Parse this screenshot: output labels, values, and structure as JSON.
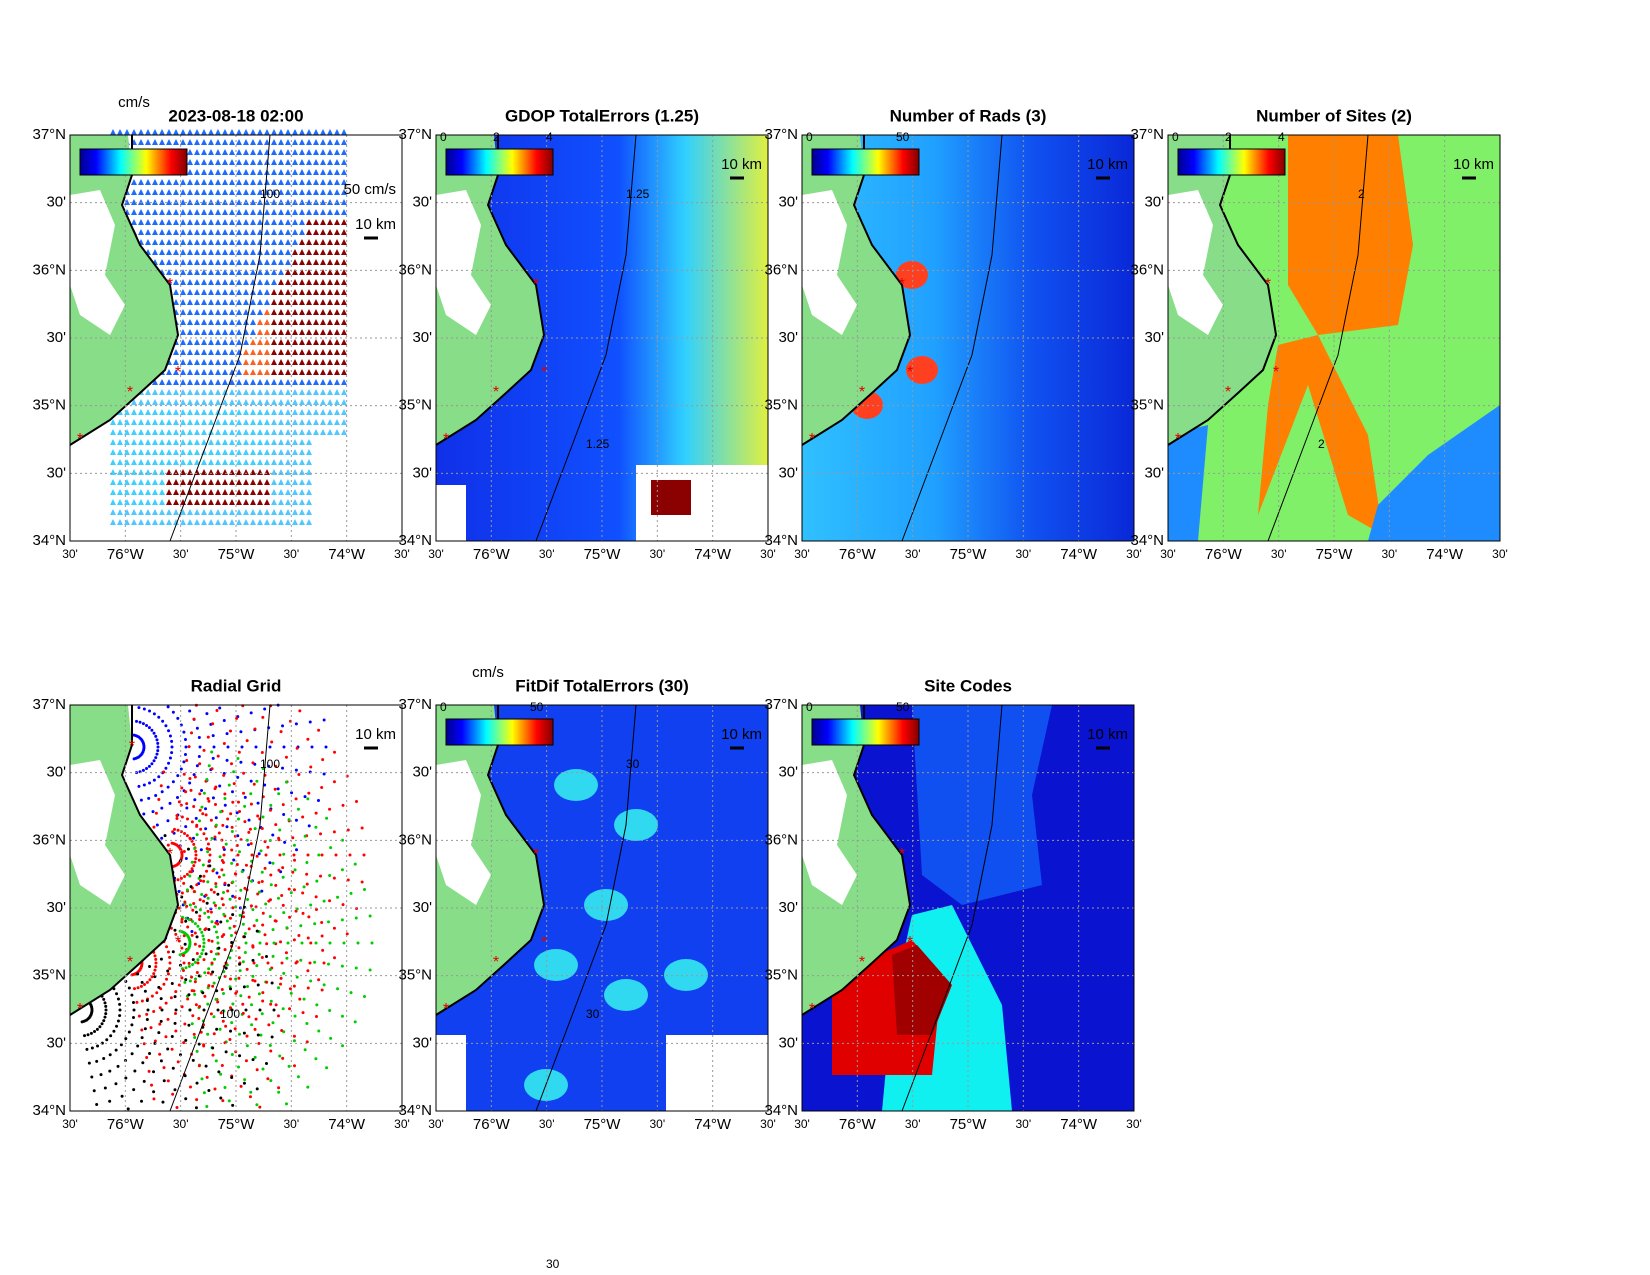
{
  "panels": [
    {
      "title": "2023-08-18 02:00",
      "colorbar_unit": "cm/s",
      "scale_labels": [
        "50 cm/s",
        "10 km"
      ],
      "contour_labels": [
        "100"
      ]
    },
    {
      "title": "GDOP TotalErrors (1.25)",
      "colorbar_ticks": [
        0,
        2,
        4
      ],
      "scale_labels": [
        "10 km"
      ],
      "contour_labels": [
        "1.25",
        "1.25"
      ]
    },
    {
      "title": "Number of Rads (3)",
      "colorbar_ticks": [
        0,
        50
      ],
      "scale_labels": [
        "10 km"
      ],
      "contour_labels": []
    },
    {
      "title": "Number of Sites (2)",
      "colorbar_ticks": [
        0,
        2,
        4
      ],
      "scale_labels": [
        "10 km"
      ],
      "contour_labels": [
        "2",
        "2"
      ]
    },
    {
      "title": "Radial Grid",
      "scale_labels": [
        "10 km"
      ],
      "contour_labels": [
        "100",
        "100"
      ]
    },
    {
      "title": "FitDif TotalErrors (30)",
      "colorbar_unit": "cm/s",
      "colorbar_ticks": [
        0,
        50
      ],
      "scale_labels": [
        "10 km"
      ],
      "contour_labels": [
        "30",
        "30",
        "30"
      ]
    },
    {
      "title": "Site Codes",
      "colorbar_ticks": [
        0,
        50
      ],
      "scale_labels": [
        "10 km"
      ],
      "contour_labels": []
    }
  ],
  "lat_labels": [
    "37°N",
    "30'",
    "36°N",
    "30'",
    "35°N",
    "30'",
    "34°N"
  ],
  "lon_labels": [
    "30'",
    "76°W",
    "30'",
    "75°W",
    "30'",
    "74°W",
    "30'"
  ]
}
